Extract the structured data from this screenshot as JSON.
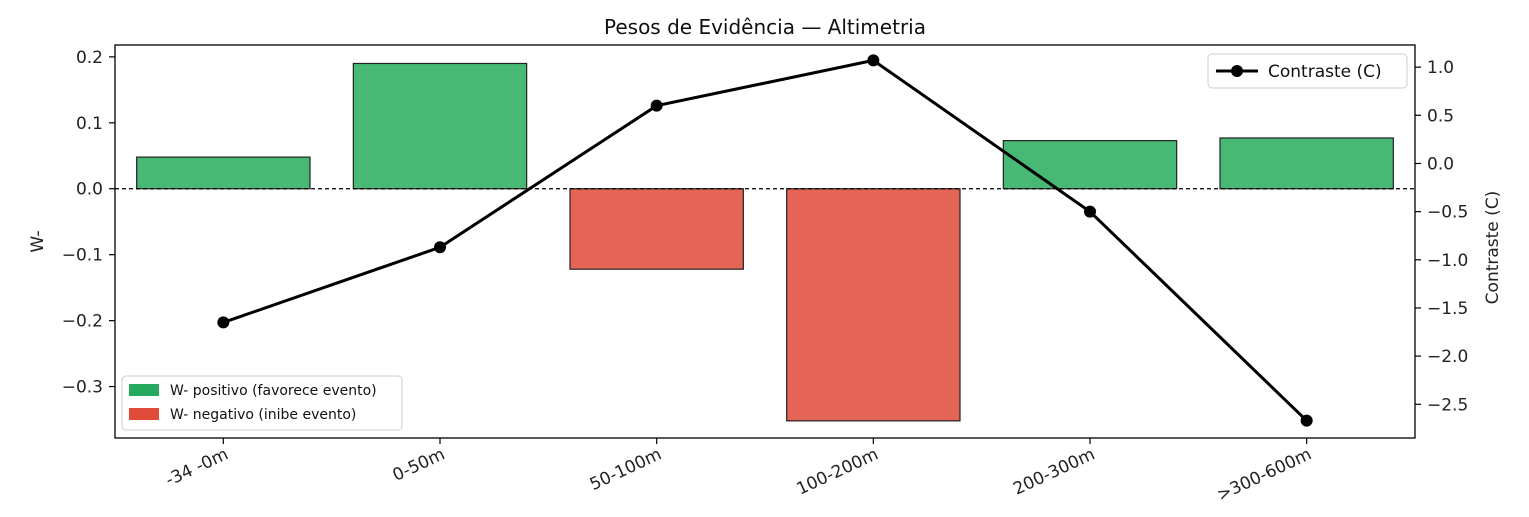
{
  "chart_data": {
    "type": "bar",
    "title": "Pesos de Evidência — Altimetria",
    "xlabel": "",
    "ylabel": "W-",
    "y2label": "Contraste (C)",
    "categories": [
      "-34 -0m",
      "0-50m",
      "50-100m",
      "100-200m",
      "200-300m",
      ">300-600m"
    ],
    "series": [
      {
        "kind": "bar",
        "axis": "left",
        "values": [
          0.048,
          0.19,
          -0.122,
          -0.352,
          0.073,
          0.077
        ]
      },
      {
        "kind": "line",
        "axis": "right",
        "name": "Contraste (C)",
        "values": [
          -1.65,
          -0.87,
          0.6,
          1.07,
          -0.5,
          -2.67
        ]
      }
    ],
    "ylim": [
      -0.378,
      0.218
    ],
    "y2lim": [
      -2.85,
      1.23
    ],
    "yticks": [
      0.2,
      0.1,
      0.0,
      -0.1,
      -0.2,
      -0.3
    ],
    "ytick_labels": [
      "0.2",
      "0.1",
      "0.0",
      "−0.1",
      "−0.2",
      "−0.3"
    ],
    "y2ticks": [
      1.0,
      0.5,
      0.0,
      -0.5,
      -1.0,
      -1.5,
      -2.0,
      -2.5
    ],
    "y2tick_labels": [
      "1.0",
      "0.5",
      "0.0",
      "−0.5",
      "−1.0",
      "−1.5",
      "−2.0",
      "−2.5"
    ],
    "zero_line": "dashed",
    "legends": [
      {
        "placement": "upper right",
        "entries": [
          {
            "label": "Contraste (C)",
            "marker": "line-dot",
            "color": "#000000"
          }
        ]
      },
      {
        "placement": "lower left",
        "entries": [
          {
            "label": "W- positivo (favorece evento)",
            "color": "#27a85f"
          },
          {
            "label": "W- negativo (inibe evento)",
            "color": "#e04b3a"
          }
        ]
      }
    ],
    "colors": {
      "positive_bar": "#48b975",
      "negative_bar": "#e46555",
      "line": "#000000"
    }
  }
}
